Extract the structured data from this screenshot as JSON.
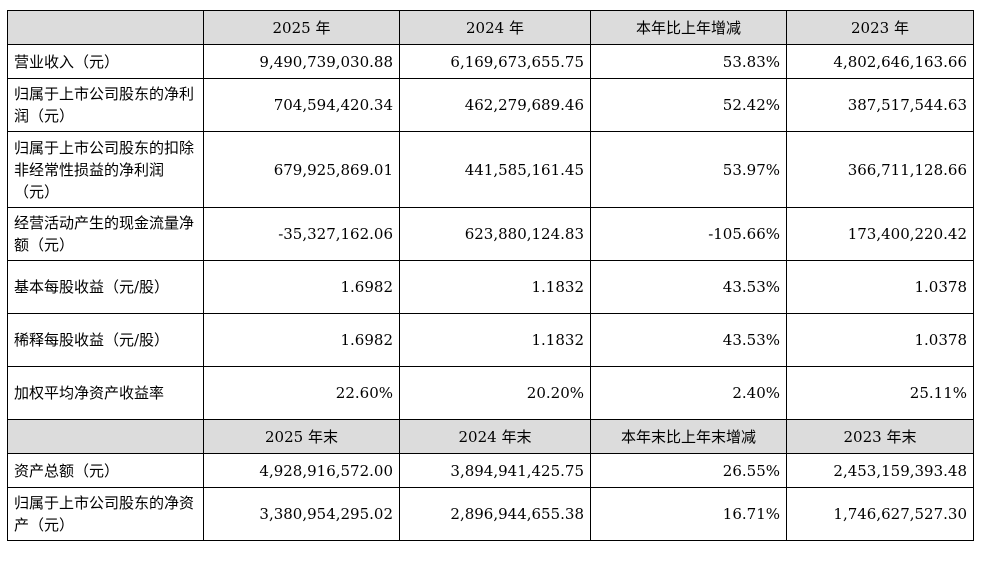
{
  "header1": [
    "",
    "2025 年",
    "2024 年",
    "本年比上年增减",
    "2023 年"
  ],
  "header2": [
    "",
    "2025 年末",
    "2024 年末",
    "本年末比上年末增减",
    "2023 年末"
  ],
  "rows1": [
    {
      "label": "营业收入（元）",
      "v2025": "9,490,739,030.88",
      "v2024": "6,169,673,655.75",
      "change": "53.83%",
      "v2023": "4,802,646,163.66"
    },
    {
      "label": "归属于上市公司股东的净利润（元）",
      "v2025": "704,594,420.34",
      "v2024": "462,279,689.46",
      "change": "52.42%",
      "v2023": "387,517,544.63"
    },
    {
      "label": "归属于上市公司股东的扣除非经常性损益的净利润（元）",
      "v2025": "679,925,869.01",
      "v2024": "441,585,161.45",
      "change": "53.97%",
      "v2023": "366,711,128.66"
    },
    {
      "label": "经营活动产生的现金流量净额（元）",
      "v2025": "-35,327,162.06",
      "v2024": "623,880,124.83",
      "change": "-105.66%",
      "v2023": "173,400,220.42"
    },
    {
      "label": "基本每股收益（元/股）",
      "v2025": "1.6982",
      "v2024": "1.1832",
      "change": "43.53%",
      "v2023": "1.0378"
    },
    {
      "label": "稀释每股收益（元/股）",
      "v2025": "1.6982",
      "v2024": "1.1832",
      "change": "43.53%",
      "v2023": "1.0378"
    },
    {
      "label": "加权平均净资产收益率",
      "v2025": "22.60%",
      "v2024": "20.20%",
      "change": "2.40%",
      "v2023": "25.11%"
    }
  ],
  "rows2": [
    {
      "label": "资产总额（元）",
      "v2025": "4,928,916,572.00",
      "v2024": "3,894,941,425.75",
      "change": "26.55%",
      "v2023": "2,453,159,393.48"
    },
    {
      "label": "归属于上市公司股东的净资产（元）",
      "v2025": "3,380,954,295.02",
      "v2024": "2,896,944,655.38",
      "change": "16.71%",
      "v2023": "1,746,627,527.30"
    }
  ]
}
